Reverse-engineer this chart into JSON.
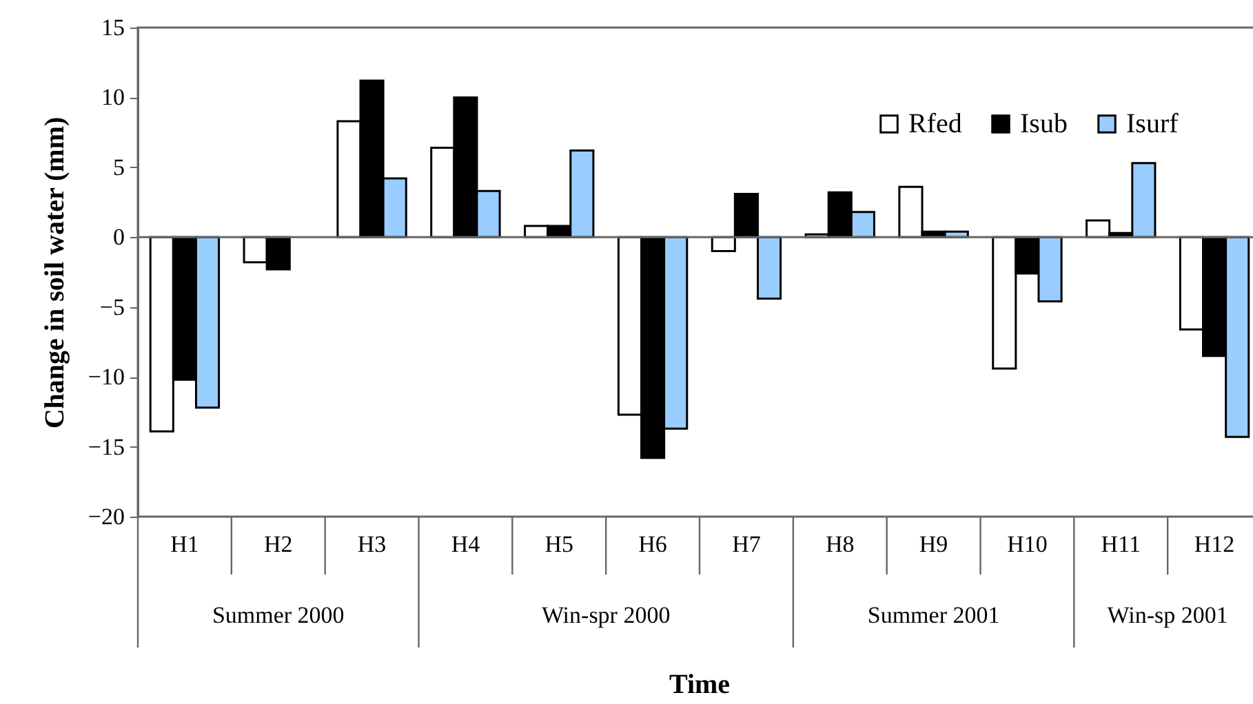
{
  "chart_data": {
    "type": "bar",
    "xlabel": "Time",
    "ylabel": "Change in soil water (mm)",
    "categories": [
      "H1",
      "H2",
      "H3",
      "H4",
      "H5",
      "H6",
      "H7",
      "H8",
      "H9",
      "H10",
      "H11",
      "H12"
    ],
    "series": [
      {
        "name": "Rfed",
        "color": "#ffffff",
        "values": [
          -13.9,
          -1.8,
          8.3,
          6.4,
          0.8,
          -12.7,
          -1.0,
          0.2,
          3.6,
          -9.4,
          1.2,
          -6.6
        ]
      },
      {
        "name": "Isub",
        "color": "#000000",
        "values": [
          -10.2,
          -2.3,
          11.2,
          10.0,
          0.8,
          -15.8,
          3.1,
          3.2,
          0.4,
          -2.6,
          0.3,
          -8.5
        ]
      },
      {
        "name": "Isurf",
        "color": "#99ccff",
        "values": [
          -12.2,
          null,
          4.2,
          3.3,
          6.2,
          -13.7,
          -4.4,
          1.8,
          0.4,
          -4.6,
          5.3,
          -14.3
        ]
      }
    ],
    "ylim": [
      -20,
      15
    ],
    "yticks": [
      -20,
      -15,
      -10,
      -5,
      0,
      5,
      10,
      15
    ],
    "annotations": [
      "Summer 2000",
      "Win-spr 2000",
      "Summer 2001",
      "Win-sp 2001"
    ],
    "legend": "top right"
  }
}
